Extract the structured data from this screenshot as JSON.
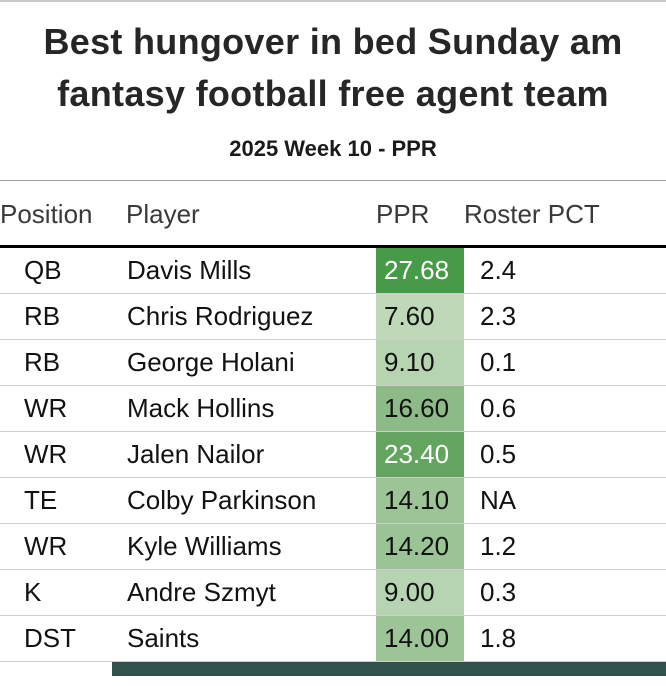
{
  "title": "Best hungover in bed Sunday am fantasy football free agent team",
  "subtitle": "2025 Week 10 - PPR",
  "colors": {
    "green_scale_min": "#c2dabc",
    "green_scale_max": "#3f8f43",
    "footer_bar": "#30524c",
    "header_rule_top": "#a0a0a0",
    "header_rule_bottom": "#000000",
    "row_divider": "#cdcdcd"
  },
  "chart_data": {
    "type": "table",
    "title": "Best hungover in bed Sunday am fantasy football free agent team",
    "subtitle": "2025 Week 10 - PPR",
    "columns": [
      "Position",
      "Player",
      "PPR",
      "Roster PCT"
    ],
    "rows": [
      {
        "position": "QB",
        "player": "Davis Mills",
        "ppr": "27.68",
        "roster": "2.4",
        "ppr_bg": "#479a48",
        "ppr_text": "#ffffff"
      },
      {
        "position": "RB",
        "player": "Chris Rodriguez",
        "ppr": "7.60",
        "roster": "2.3",
        "ppr_bg": "#bed8b8",
        "ppr_text": "#121212"
      },
      {
        "position": "RB",
        "player": "George Holani",
        "ppr": "9.10",
        "roster": "0.1",
        "ppr_bg": "#b7d4b1",
        "ppr_text": "#121212"
      },
      {
        "position": "WR",
        "player": "Mack Hollins",
        "ppr": "16.60",
        "roster": "0.6",
        "ppr_bg": "#8cbb87",
        "ppr_text": "#121212"
      },
      {
        "position": "WR",
        "player": "Jalen Nailor",
        "ppr": "23.40",
        "roster": "0.5",
        "ppr_bg": "#63a45f",
        "ppr_text": "#ffffff"
      },
      {
        "position": "TE",
        "player": "Colby Parkinson",
        "ppr": "14.10",
        "roster": "NA",
        "ppr_bg": "#9cc497",
        "ppr_text": "#121212"
      },
      {
        "position": "WR",
        "player": "Kyle Williams",
        "ppr": "14.20",
        "roster": "1.2",
        "ppr_bg": "#9bc496",
        "ppr_text": "#121212"
      },
      {
        "position": "K",
        "player": "Andre Szmyt",
        "ppr": "9.00",
        "roster": "0.3",
        "ppr_bg": "#b7d4b2",
        "ppr_text": "#121212"
      },
      {
        "position": "DST",
        "player": "Saints",
        "ppr": "14.00",
        "roster": "1.8",
        "ppr_bg": "#9cc497",
        "ppr_text": "#121212"
      }
    ]
  }
}
